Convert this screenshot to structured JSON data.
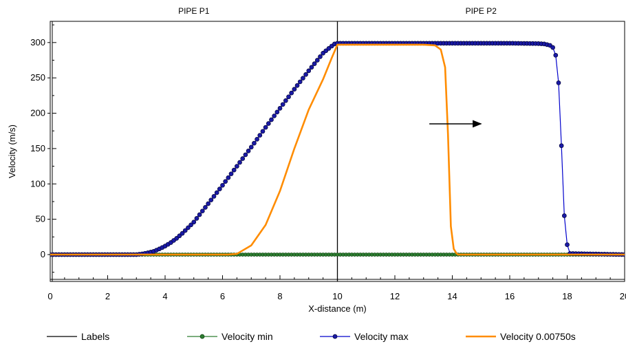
{
  "chart_data": {
    "type": "line",
    "xlabel": "X-distance (m)",
    "ylabel": "Velocity (m/s)",
    "xlim": [
      0,
      20
    ],
    "ylim": [
      -38,
      330
    ],
    "x_ticks": [
      0,
      2,
      4,
      6,
      8,
      10,
      12,
      14,
      16,
      18,
      20
    ],
    "x_tick_labels": [
      "0",
      "2",
      "4",
      "6",
      "8",
      "10",
      "12",
      "14",
      "16",
      "18",
      "20"
    ],
    "y_ticks": [
      0,
      50,
      100,
      150,
      200,
      250,
      300
    ],
    "y_tick_labels": [
      "0",
      "50",
      "100",
      "150",
      "200",
      "250",
      "300"
    ],
    "grid": false,
    "legend_position": "bottom",
    "regions": [
      {
        "label": "PIPE P1",
        "x_start": 0,
        "x_end": 10
      },
      {
        "label": "PIPE P2",
        "x_start": 10,
        "x_end": 20
      }
    ],
    "annotations": [
      {
        "type": "arrow",
        "direction": "right",
        "x_from": 13.2,
        "x_to": 15.0,
        "y": 185
      }
    ],
    "series": [
      {
        "name": "Labels",
        "color": "#000000",
        "marker": "none",
        "x": [
          10,
          10
        ],
        "y": [
          -38,
          330
        ]
      },
      {
        "name": "Velocity min",
        "color": "#2e7d32",
        "marker": "circle",
        "x_start": 0,
        "x_end": 20,
        "x_step": 0.1,
        "y_constant": 0
      },
      {
        "name": "Velocity max",
        "color": "#0000cc",
        "marker": "circle",
        "x": [
          0,
          3.0,
          3.2,
          3.4,
          3.6,
          3.8,
          4.0,
          4.2,
          4.4,
          4.6,
          4.8,
          5.0,
          5.5,
          6.0,
          6.5,
          7.0,
          7.5,
          8.0,
          8.5,
          9.0,
          9.5,
          9.8,
          9.9,
          10.0,
          12.0,
          14.0,
          16.0,
          17.0,
          17.2,
          17.4,
          17.5,
          17.6,
          17.7,
          17.8,
          17.9,
          18.0,
          18.1,
          20
        ],
        "y": [
          0,
          0,
          1,
          2.5,
          4.5,
          8,
          12,
          17,
          23,
          30,
          38,
          46,
          72,
          98,
          125,
          152,
          180,
          207,
          234,
          260,
          285,
          295,
          298,
          299,
          299,
          299,
          299,
          298.5,
          298,
          296,
          293,
          282,
          243,
          154,
          55,
          14,
          1.5,
          0
        ]
      },
      {
        "name": "Velocity 0.00750s",
        "color": "#ff8c00",
        "marker": "none",
        "x": [
          0,
          6.2,
          6.5,
          7.0,
          7.5,
          8.0,
          8.5,
          9.0,
          9.5,
          9.8,
          10.0,
          11.0,
          12.0,
          13.0,
          13.4,
          13.6,
          13.75,
          13.85,
          13.95,
          14.05,
          14.15,
          14.2,
          14.3,
          20
        ],
        "y": [
          0,
          0,
          1,
          13,
          42,
          90,
          150,
          205,
          248,
          278,
          297,
          297,
          297,
          297,
          296,
          290,
          265,
          170,
          40,
          8,
          1.5,
          0,
          0,
          0
        ]
      }
    ]
  }
}
